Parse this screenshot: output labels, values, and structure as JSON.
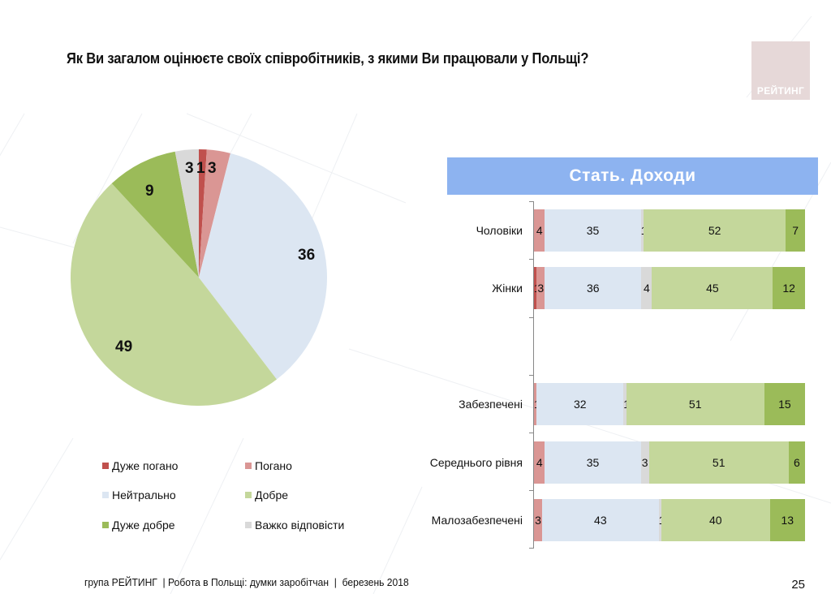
{
  "title": "Як Ви загалом оцінюєте своїх співробітників, з якими Ви працювали у Польщі?",
  "logo": {
    "text": "РЕЙТИНГ",
    "color": "#e6d8d8"
  },
  "categories": [
    {
      "key": "very_bad",
      "label": "Дуже погано",
      "color": "#c0504d"
    },
    {
      "key": "bad",
      "label": "Погано",
      "color": "#da9694"
    },
    {
      "key": "neutral",
      "label": "Нейтрально",
      "color": "#dce6f2"
    },
    {
      "key": "good",
      "label": "Добре",
      "color": "#c4d79b"
    },
    {
      "key": "very_good",
      "label": "Дуже добре",
      "color": "#9bbb59"
    },
    {
      "key": "hard_to_say",
      "label": "Важко відповісти",
      "color": "#d9d9d9"
    }
  ],
  "pie": {
    "labels": {
      "very_bad": "1",
      "bad": "3",
      "neutral": "36",
      "good": "49",
      "very_good": "9",
      "hard_to_say": "3"
    }
  },
  "bar_section": {
    "header": "Стать. Доходи"
  },
  "bars": [
    {
      "label": "Чоловіки",
      "values": [
        0,
        4,
        35,
        1,
        52,
        7
      ],
      "labels": [
        "",
        "4",
        "35",
        "1",
        "52",
        "7"
      ]
    },
    {
      "label": "Жінки",
      "values": [
        1,
        3,
        36,
        4,
        45,
        12
      ],
      "labels": [
        "1",
        "3",
        "36",
        "4",
        "45",
        "12"
      ]
    },
    {
      "label": "Забезпечені",
      "values": [
        0,
        1,
        32,
        1,
        51,
        15
      ],
      "labels": [
        "",
        "1",
        "32",
        "1",
        "51",
        "15"
      ]
    },
    {
      "label": "Середнього рівня",
      "values": [
        0,
        4,
        35,
        3,
        51,
        6
      ],
      "labels": [
        "",
        "4",
        "35",
        "3",
        "51",
        "6"
      ]
    },
    {
      "label": "Малозабезпечені",
      "values": [
        0,
        3,
        43,
        1,
        40,
        13
      ],
      "labels": [
        "",
        "3",
        "43",
        "1",
        "40",
        "13"
      ]
    }
  ],
  "footer": {
    "text": "група РЕЙТИНГ  | Робота в Польщі: думки заробітчан  |  березень 2018",
    "page": "25"
  },
  "chart_data": [
    {
      "type": "pie",
      "title": "Як Ви загалом оцінюєте своїх співробітників, з якими Ви працювали у Польщі?",
      "categories": [
        "Дуже погано",
        "Погано",
        "Нейтрально",
        "Добре",
        "Дуже добре",
        "Важко відповісти"
      ],
      "values": [
        1,
        3,
        36,
        49,
        9,
        3
      ],
      "colors": [
        "#c0504d",
        "#da9694",
        "#dce6f2",
        "#c4d79b",
        "#9bbb59",
        "#d9d9d9"
      ],
      "legend_position": "bottom",
      "unit": "%"
    },
    {
      "type": "bar",
      "orientation": "horizontal",
      "stacked": true,
      "title": "Стать. Доходи",
      "categories": [
        "Чоловіки",
        "Жінки",
        "Забезпечені",
        "Середнього рівня",
        "Малозабезпечені"
      ],
      "series": [
        {
          "name": "Дуже погано",
          "values": [
            0,
            1,
            0,
            0,
            0
          ]
        },
        {
          "name": "Погано",
          "values": [
            4,
            3,
            1,
            4,
            3
          ]
        },
        {
          "name": "Нейтрально",
          "values": [
            35,
            36,
            32,
            35,
            43
          ]
        },
        {
          "name": "Важко відповісти",
          "values": [
            1,
            4,
            1,
            3,
            1
          ]
        },
        {
          "name": "Добре",
          "values": [
            52,
            45,
            51,
            51,
            40
          ]
        },
        {
          "name": "Дуже добре",
          "values": [
            7,
            12,
            15,
            6,
            13
          ]
        }
      ],
      "xlim": [
        0,
        100
      ],
      "grid": false,
      "unit": "%"
    }
  ]
}
